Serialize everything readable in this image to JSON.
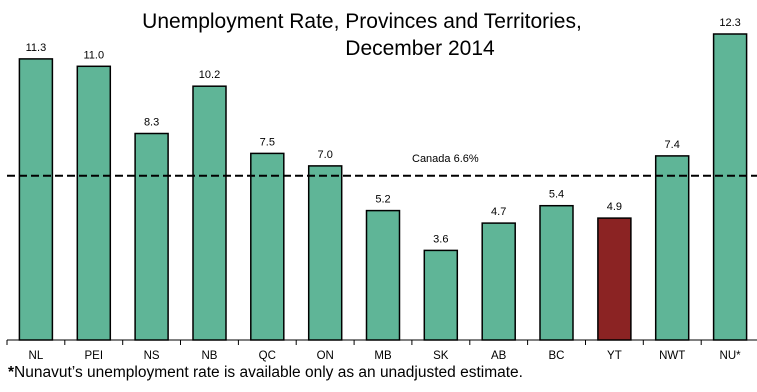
{
  "chart_data": {
    "type": "bar",
    "title_lines": [
      "Unemployment Rate, Provinces and Territories,",
      "December 2014"
    ],
    "categories": [
      "NL",
      "PEI",
      "NS",
      "NB",
      "QC",
      "ON",
      "MB",
      "SK",
      "AB",
      "BC",
      "YT",
      "NWT",
      "NU*"
    ],
    "values": [
      11.3,
      11.0,
      8.3,
      10.2,
      7.5,
      7.0,
      5.2,
      3.6,
      4.7,
      5.4,
      4.9,
      7.4,
      12.3
    ],
    "value_labels": [
      "11.3",
      "11.0",
      "8.3",
      "10.2",
      "7.5",
      "7.0",
      "5.2",
      "3.6",
      "4.7",
      "5.4",
      "4.9",
      "7.4",
      "12.3"
    ],
    "highlight_category": "YT",
    "reference_line": {
      "value": 6.6,
      "label": "Canada 6.6%"
    },
    "ylim": [
      0,
      12.3
    ],
    "grid": false,
    "xlabel": "",
    "ylabel": "",
    "colors": {
      "bar": "#5fb597",
      "highlight": "#8b2323",
      "outline": "#000000"
    }
  },
  "footnote": {
    "marker": "*",
    "text": "Nunavut’s unemployment rate is available only as an unadjusted estimate."
  }
}
